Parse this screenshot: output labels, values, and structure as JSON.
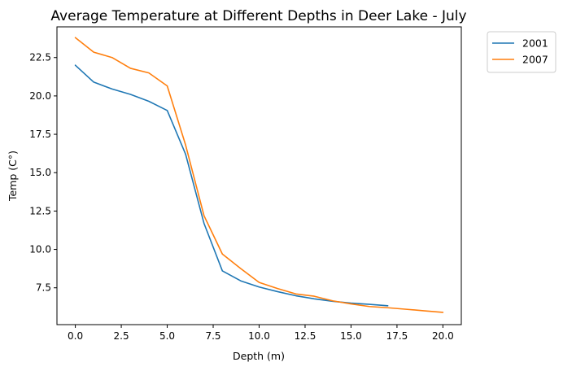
{
  "chart_data": {
    "type": "line",
    "title": "Average Temperature at Different Depths in Deer Lake - July",
    "xlabel": "Depth (m)",
    "ylabel": "Temp (C°)",
    "xlim": [
      -1,
      21
    ],
    "ylim": [
      5.1,
      24.5
    ],
    "xticks": [
      0.0,
      2.5,
      5.0,
      7.5,
      10.0,
      12.5,
      15.0,
      17.5,
      20.0
    ],
    "xtick_labels": [
      "0.0",
      "2.5",
      "5.0",
      "7.5",
      "10.0",
      "12.5",
      "15.0",
      "17.5",
      "20.0"
    ],
    "yticks": [
      7.5,
      10.0,
      12.5,
      15.0,
      17.5,
      20.0,
      22.5
    ],
    "ytick_labels": [
      "7.5",
      "10.0",
      "12.5",
      "15.0",
      "17.5",
      "20.0",
      "22.5"
    ],
    "grid": false,
    "legend_position": "outside-top-right",
    "series": [
      {
        "name": "2001",
        "color": "#1f77b4",
        "x": [
          0,
          1,
          2,
          3,
          4,
          5,
          6,
          7,
          8,
          9,
          10,
          11,
          12,
          13,
          14,
          15,
          16,
          17
        ],
        "y": [
          22.0,
          20.9,
          20.45,
          20.1,
          19.65,
          19.05,
          16.2,
          11.7,
          8.6,
          7.95,
          7.55,
          7.25,
          6.98,
          6.78,
          6.62,
          6.5,
          6.42,
          6.33
        ]
      },
      {
        "name": "2007",
        "color": "#ff7f0e",
        "x": [
          0,
          1,
          2,
          3,
          4,
          5,
          6,
          7,
          8,
          9,
          10,
          11,
          12,
          13,
          14,
          15,
          16,
          17,
          18,
          19,
          20
        ],
        "y": [
          23.8,
          22.85,
          22.5,
          21.8,
          21.5,
          20.65,
          16.8,
          12.2,
          9.7,
          8.75,
          7.85,
          7.45,
          7.1,
          6.95,
          6.65,
          6.45,
          6.28,
          6.2,
          6.1,
          6.0,
          5.9
        ]
      }
    ]
  }
}
